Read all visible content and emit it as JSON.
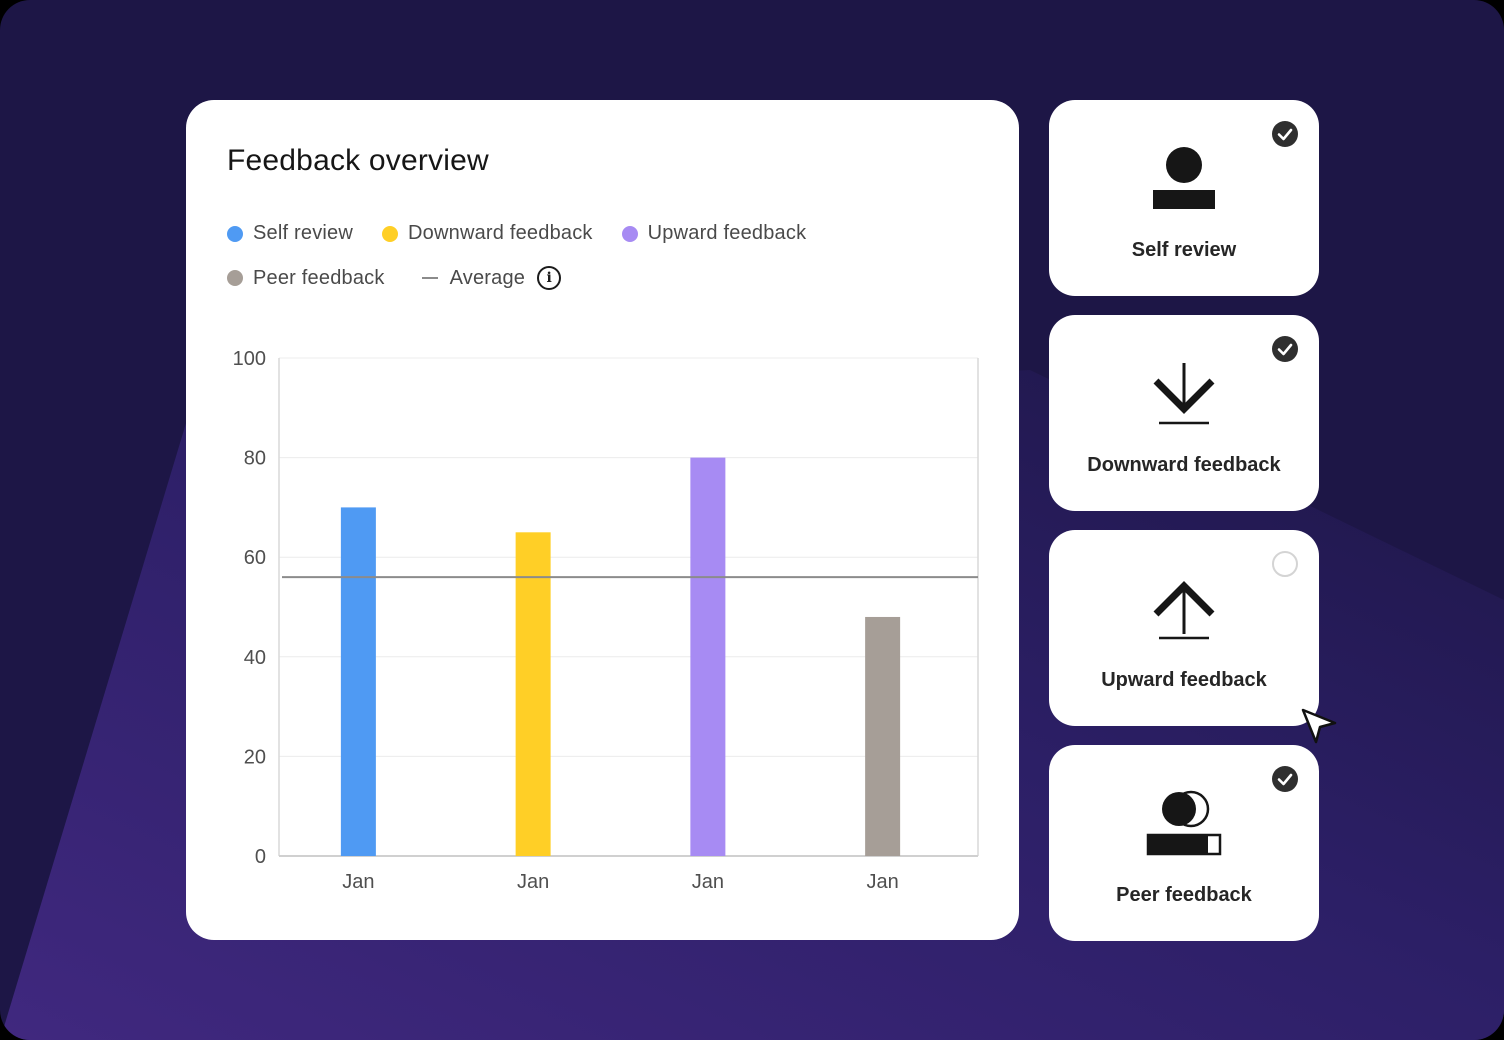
{
  "card": {
    "title": "Feedback overview"
  },
  "legend": [
    {
      "label": "Self review",
      "color": "#4f9af3"
    },
    {
      "label": "Downward feedback",
      "color": "#ffcf26"
    },
    {
      "label": "Upward feedback",
      "color": "#a78bf3"
    },
    {
      "label": "Peer feedback",
      "color": "#a69e97"
    }
  ],
  "average_legend": {
    "label": "Average",
    "icon": "info-icon"
  },
  "chart_data": {
    "type": "bar",
    "categories": [
      "Jan",
      "Jan",
      "Jan",
      "Jan"
    ],
    "series": [
      {
        "name": "Self review",
        "values": [
          70,
          null,
          null,
          null
        ],
        "color": "#4f9af3"
      },
      {
        "name": "Downward feedback",
        "values": [
          null,
          65,
          null,
          null
        ],
        "color": "#ffcf26"
      },
      {
        "name": "Upward feedback",
        "values": [
          null,
          null,
          80,
          null
        ],
        "color": "#a78bf3"
      },
      {
        "name": "Peer feedback",
        "values": [
          null,
          null,
          null,
          48
        ],
        "color": "#a69e97"
      }
    ],
    "average": 56,
    "ylim": [
      0,
      100
    ],
    "yticks": [
      0,
      20,
      40,
      60,
      80,
      100
    ],
    "grid": true,
    "legend_position": "top-left",
    "xlabel": "",
    "ylabel": ""
  },
  "options": [
    {
      "label": "Self review",
      "checked": true,
      "icon": "person-icon"
    },
    {
      "label": "Downward feedback",
      "checked": true,
      "icon": "arrow-down-icon"
    },
    {
      "label": "Upward feedback",
      "checked": false,
      "icon": "arrow-up-icon"
    },
    {
      "label": "Peer feedback",
      "checked": true,
      "icon": "peers-icon"
    }
  ],
  "colors": {
    "background": "#1d1646",
    "accent_purple": "#3e2a80",
    "average_line": "#8b8b8b"
  }
}
